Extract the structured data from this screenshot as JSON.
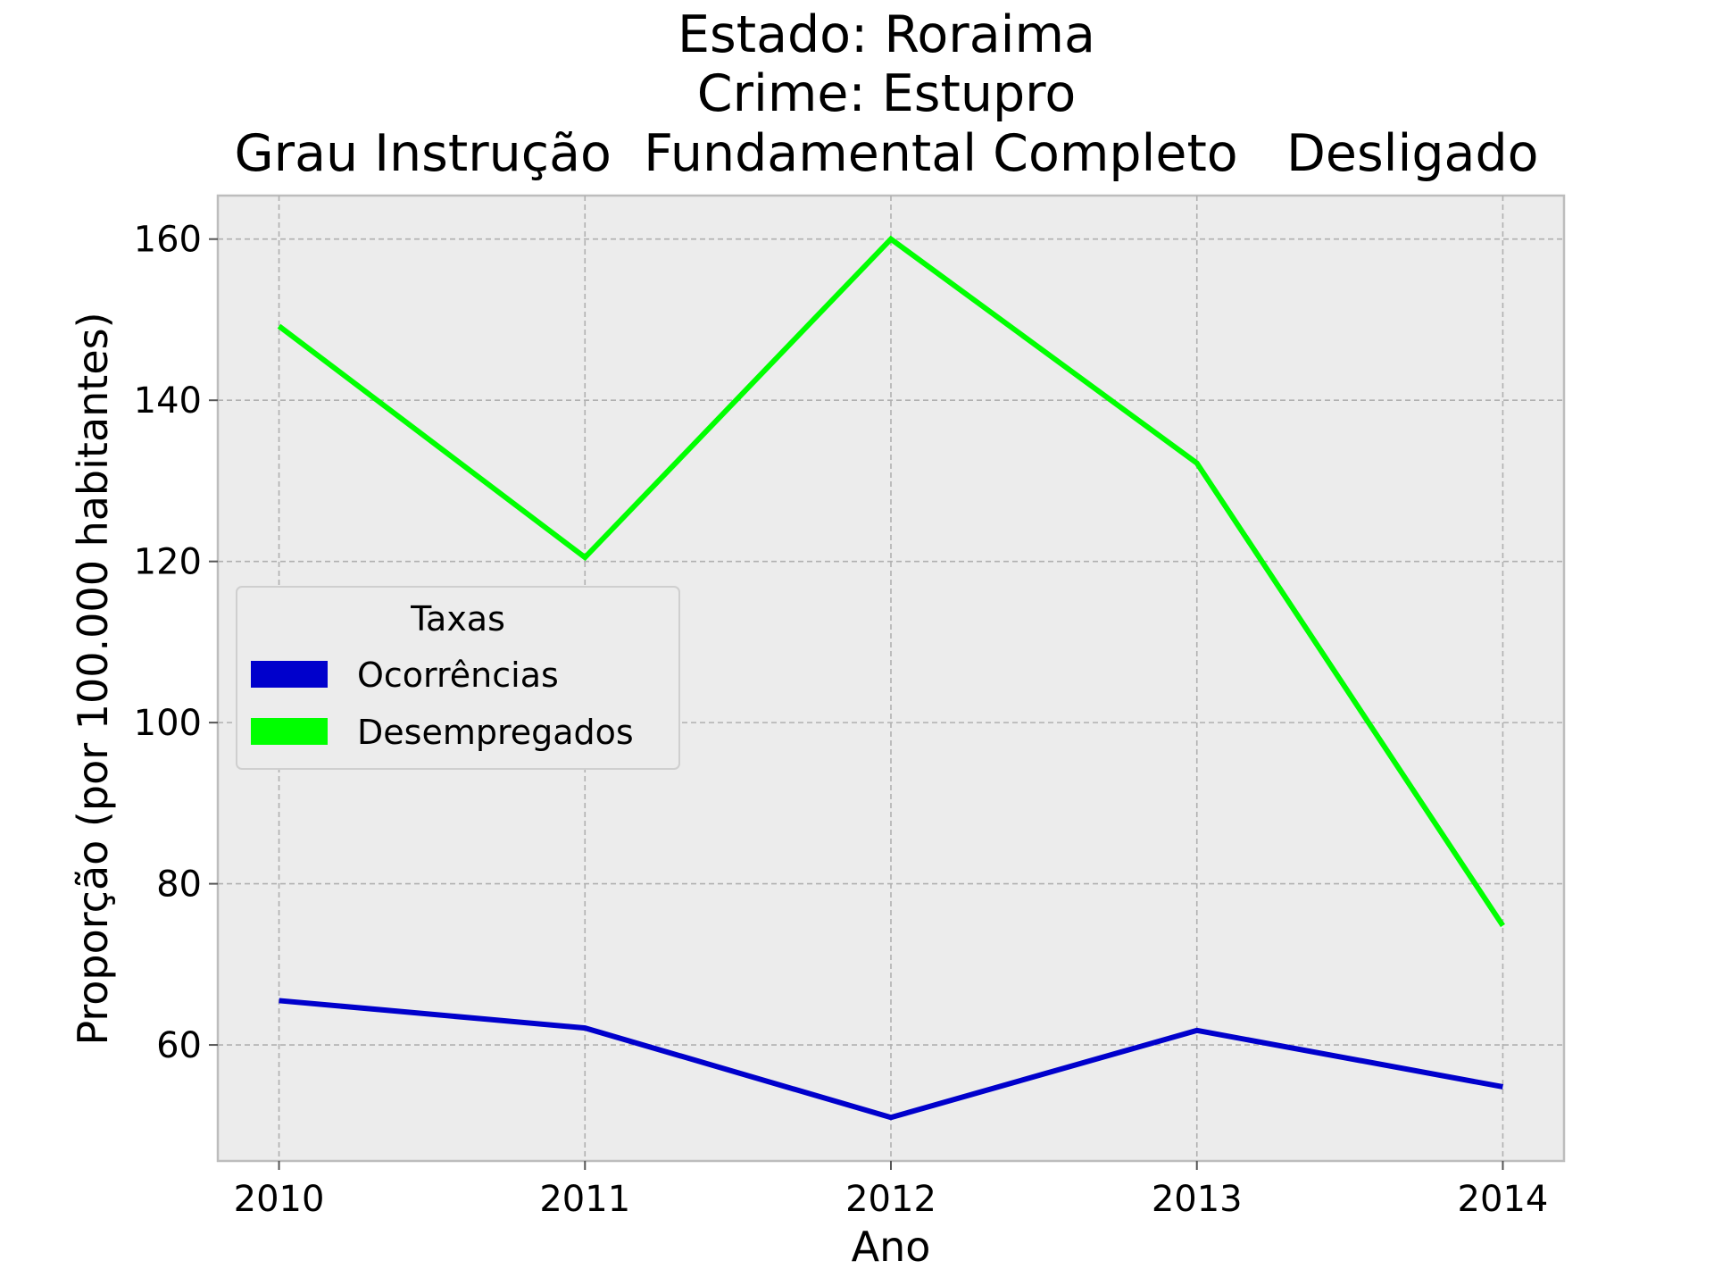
{
  "chart_data": {
    "type": "line",
    "title_lines": [
      "Estado: Roraima",
      "Crime: Estupro",
      "Grau Instrução  Fundamental Completo   Desligado"
    ],
    "xlabel": "Ano",
    "ylabel": "Proporção (por 100.000 habitantes)",
    "x": [
      "2010",
      "2011",
      "2012",
      "2013",
      "2014"
    ],
    "xlim": [
      2009.8,
      2014.2
    ],
    "ylim": [
      45.6,
      165.4
    ],
    "yticks": [
      60,
      80,
      100,
      120,
      140,
      160
    ],
    "grid": true,
    "background": "#ececec",
    "legend": {
      "title": "Taxas",
      "placement": "center-left"
    },
    "series": [
      {
        "name": "Ocorrências",
        "color": "#0000cc",
        "values": [
          65.5,
          62.1,
          51.0,
          61.8,
          54.8
        ]
      },
      {
        "name": "Desempregados",
        "color": "#00ff00",
        "values": [
          149.2,
          120.5,
          160.0,
          132.2,
          74.8
        ]
      }
    ]
  }
}
